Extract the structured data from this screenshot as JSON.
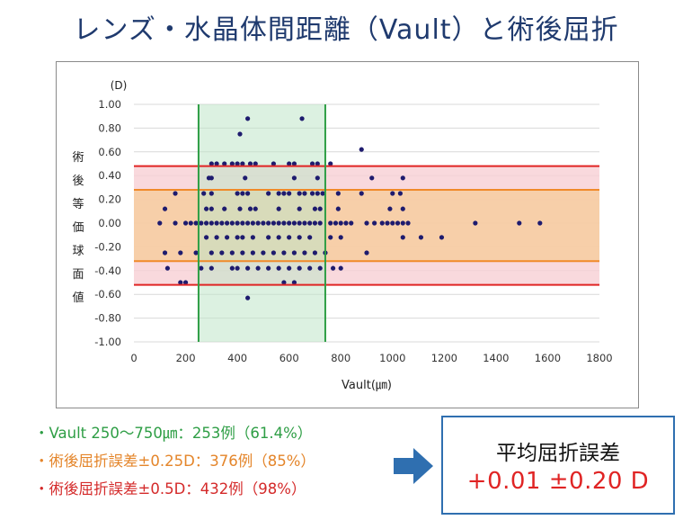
{
  "title": "レンズ・水晶体間距離（Vault）と術後屈折",
  "chart_data": {
    "type": "scatter",
    "xlabel": "Vault(㎛)",
    "ylabel": "術後等価球面値",
    "yunit": "(D)",
    "xlim": [
      0,
      1800
    ],
    "ylim": [
      -1.0,
      1.0
    ],
    "xticks": [
      0,
      200,
      400,
      600,
      800,
      1000,
      1200,
      1400,
      1600,
      1800
    ],
    "yticks": [
      "1.00",
      "0.80",
      "0.60",
      "0.40",
      "0.20",
      "0.00",
      "-0.20",
      "-0.40",
      "-0.60",
      "-0.80",
      "-1.00"
    ],
    "grid": true,
    "marker_color": "#1e1b6e",
    "bands": [
      {
        "name": "±0.5D",
        "from": -0.52,
        "to": 0.48,
        "line_color": "#e02424",
        "fill": "#f8d0d4"
      },
      {
        "name": "±0.25D",
        "from": -0.32,
        "to": 0.28,
        "line_color": "#f08a2a",
        "fill": "#f7cda0"
      },
      {
        "name": "Vault 250-750",
        "x_from": 250,
        "x_to": 740,
        "line_color": "#2e9e45",
        "fill": "#bfe6c9"
      }
    ],
    "points": [
      [
        440,
        0.88
      ],
      [
        650,
        0.88
      ],
      [
        410,
        0.75
      ],
      [
        880,
        0.62
      ],
      [
        300,
        0.5
      ],
      [
        320,
        0.5
      ],
      [
        350,
        0.5
      ],
      [
        380,
        0.5
      ],
      [
        400,
        0.5
      ],
      [
        420,
        0.5
      ],
      [
        450,
        0.5
      ],
      [
        470,
        0.5
      ],
      [
        540,
        0.5
      ],
      [
        600,
        0.5
      ],
      [
        620,
        0.5
      ],
      [
        690,
        0.5
      ],
      [
        710,
        0.5
      ],
      [
        760,
        0.5
      ],
      [
        290,
        0.38
      ],
      [
        300,
        0.38
      ],
      [
        430,
        0.38
      ],
      [
        620,
        0.38
      ],
      [
        710,
        0.38
      ],
      [
        920,
        0.38
      ],
      [
        1040,
        0.38
      ],
      [
        160,
        0.25
      ],
      [
        270,
        0.25
      ],
      [
        300,
        0.25
      ],
      [
        400,
        0.25
      ],
      [
        420,
        0.25
      ],
      [
        440,
        0.25
      ],
      [
        520,
        0.25
      ],
      [
        560,
        0.25
      ],
      [
        580,
        0.25
      ],
      [
        600,
        0.25
      ],
      [
        640,
        0.25
      ],
      [
        660,
        0.25
      ],
      [
        690,
        0.25
      ],
      [
        710,
        0.25
      ],
      [
        730,
        0.25
      ],
      [
        790,
        0.25
      ],
      [
        880,
        0.25
      ],
      [
        1000,
        0.25
      ],
      [
        1030,
        0.25
      ],
      [
        120,
        0.12
      ],
      [
        280,
        0.12
      ],
      [
        300,
        0.12
      ],
      [
        350,
        0.12
      ],
      [
        410,
        0.12
      ],
      [
        450,
        0.12
      ],
      [
        470,
        0.12
      ],
      [
        560,
        0.12
      ],
      [
        640,
        0.12
      ],
      [
        700,
        0.12
      ],
      [
        720,
        0.12
      ],
      [
        790,
        0.12
      ],
      [
        990,
        0.12
      ],
      [
        1040,
        0.12
      ],
      [
        100,
        0.0
      ],
      [
        160,
        0.0
      ],
      [
        200,
        0.0
      ],
      [
        220,
        0.0
      ],
      [
        240,
        0.0
      ],
      [
        260,
        0.0
      ],
      [
        280,
        0.0
      ],
      [
        300,
        0.0
      ],
      [
        320,
        0.0
      ],
      [
        340,
        0.0
      ],
      [
        360,
        0.0
      ],
      [
        380,
        0.0
      ],
      [
        400,
        0.0
      ],
      [
        420,
        0.0
      ],
      [
        440,
        0.0
      ],
      [
        460,
        0.0
      ],
      [
        480,
        0.0
      ],
      [
        500,
        0.0
      ],
      [
        520,
        0.0
      ],
      [
        540,
        0.0
      ],
      [
        560,
        0.0
      ],
      [
        580,
        0.0
      ],
      [
        600,
        0.0
      ],
      [
        620,
        0.0
      ],
      [
        640,
        0.0
      ],
      [
        660,
        0.0
      ],
      [
        680,
        0.0
      ],
      [
        700,
        0.0
      ],
      [
        720,
        0.0
      ],
      [
        760,
        0.0
      ],
      [
        780,
        0.0
      ],
      [
        800,
        0.0
      ],
      [
        820,
        0.0
      ],
      [
        840,
        0.0
      ],
      [
        900,
        0.0
      ],
      [
        930,
        0.0
      ],
      [
        960,
        0.0
      ],
      [
        980,
        0.0
      ],
      [
        1000,
        0.0
      ],
      [
        1020,
        0.0
      ],
      [
        1040,
        0.0
      ],
      [
        1060,
        0.0
      ],
      [
        1320,
        0.0
      ],
      [
        1490,
        0.0
      ],
      [
        1570,
        0.0
      ],
      [
        280,
        -0.12
      ],
      [
        320,
        -0.12
      ],
      [
        360,
        -0.12
      ],
      [
        400,
        -0.12
      ],
      [
        420,
        -0.12
      ],
      [
        460,
        -0.12
      ],
      [
        520,
        -0.12
      ],
      [
        560,
        -0.12
      ],
      [
        600,
        -0.12
      ],
      [
        640,
        -0.12
      ],
      [
        680,
        -0.12
      ],
      [
        760,
        -0.12
      ],
      [
        800,
        -0.12
      ],
      [
        1040,
        -0.12
      ],
      [
        1110,
        -0.12
      ],
      [
        1190,
        -0.12
      ],
      [
        120,
        -0.25
      ],
      [
        180,
        -0.25
      ],
      [
        240,
        -0.25
      ],
      [
        300,
        -0.25
      ],
      [
        340,
        -0.25
      ],
      [
        380,
        -0.25
      ],
      [
        420,
        -0.25
      ],
      [
        460,
        -0.25
      ],
      [
        500,
        -0.25
      ],
      [
        540,
        -0.25
      ],
      [
        580,
        -0.25
      ],
      [
        620,
        -0.25
      ],
      [
        660,
        -0.25
      ],
      [
        700,
        -0.25
      ],
      [
        740,
        -0.25
      ],
      [
        900,
        -0.25
      ],
      [
        130,
        -0.38
      ],
      [
        260,
        -0.38
      ],
      [
        300,
        -0.38
      ],
      [
        380,
        -0.38
      ],
      [
        400,
        -0.38
      ],
      [
        440,
        -0.38
      ],
      [
        480,
        -0.38
      ],
      [
        520,
        -0.38
      ],
      [
        560,
        -0.38
      ],
      [
        600,
        -0.38
      ],
      [
        640,
        -0.38
      ],
      [
        680,
        -0.38
      ],
      [
        720,
        -0.38
      ],
      [
        770,
        -0.38
      ],
      [
        800,
        -0.38
      ],
      [
        180,
        -0.5
      ],
      [
        200,
        -0.5
      ],
      [
        580,
        -0.5
      ],
      [
        620,
        -0.5
      ],
      [
        440,
        -0.63
      ]
    ]
  },
  "bullets": [
    "・Vault 250〜750㎛：253例（61.4%）",
    "・術後屈折誤差±0.25D：376例（85%）",
    "・術後屈折誤差±0.5D：432例（98%）"
  ],
  "result": {
    "label": "平均屈折誤差",
    "value": "+0.01 ±0.20 D",
    "border_color": "#2f6fb0"
  },
  "arrow_color": "#2f6fb0"
}
